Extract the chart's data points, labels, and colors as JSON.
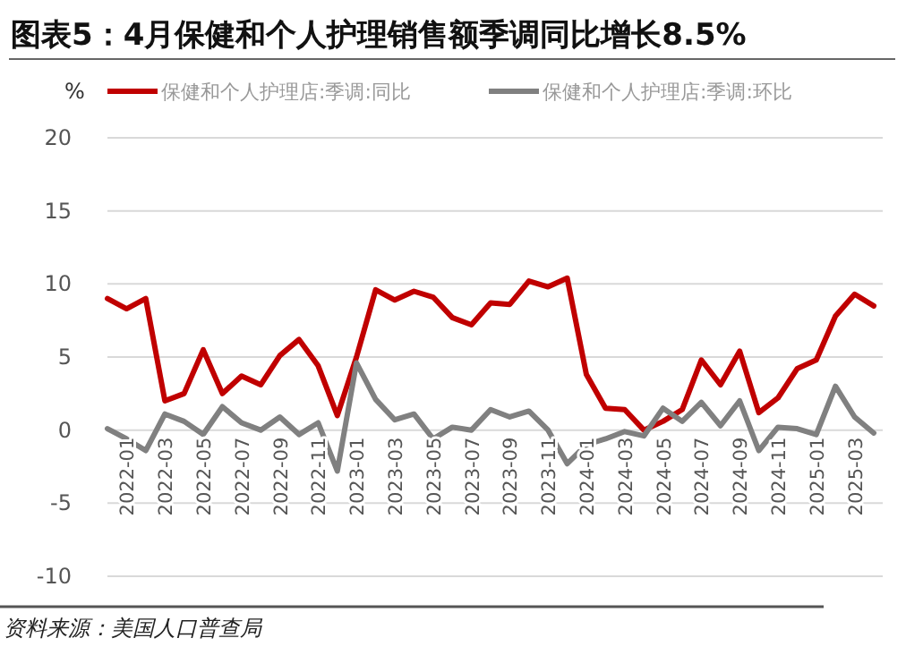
{
  "chart_data": {
    "type": "line",
    "title": "图表5：4月保健和个人护理销售额季调同比增长8.5%",
    "ylabel": "%",
    "categories": [
      null,
      "2022-01",
      null,
      "2022-03",
      null,
      "2022-05",
      null,
      "2022-07",
      null,
      "2022-09",
      null,
      "2022-11",
      null,
      "2023-01",
      null,
      "2023-03",
      null,
      "2023-05",
      null,
      "2023-07",
      null,
      "2023-09",
      null,
      "2023-11",
      null,
      "2024-01",
      null,
      "2024-03",
      null,
      "2024-05",
      null,
      "2024-07",
      null,
      "2024-09",
      null,
      "2024-11",
      null,
      "2025-01",
      null,
      "2025-03",
      null
    ],
    "series": [
      {
        "name": "保健和个人护理店:季调:同比",
        "color": "#c00000",
        "values": [
          9.0,
          8.3,
          9.0,
          2.0,
          2.5,
          5.5,
          2.5,
          3.7,
          3.1,
          5.1,
          6.2,
          4.4,
          1.0,
          5.0,
          9.6,
          8.9,
          9.5,
          9.1,
          7.7,
          7.2,
          8.7,
          8.6,
          10.2,
          9.8,
          10.4,
          3.8,
          1.5,
          1.4,
          0.0,
          0.6,
          1.4,
          4.8,
          3.1,
          5.4,
          1.2,
          2.2,
          4.2,
          4.8,
          7.8,
          9.3,
          8.5
        ]
      },
      {
        "name": "保健和个人护理店:季调:环比",
        "color": "#808080",
        "values": [
          0.1,
          -0.6,
          -1.4,
          1.1,
          0.6,
          -0.3,
          1.6,
          0.5,
          0.0,
          0.9,
          -0.3,
          0.5,
          -2.8,
          4.6,
          2.1,
          0.7,
          1.1,
          -0.6,
          0.2,
          0.0,
          1.4,
          0.9,
          1.3,
          0.0,
          -2.3,
          -1.0,
          -0.6,
          -0.1,
          -0.4,
          1.5,
          0.6,
          1.9,
          0.3,
          2.0,
          -1.4,
          0.2,
          0.1,
          -0.3,
          3.0,
          0.9,
          -0.2
        ]
      }
    ],
    "ylim": [
      -10,
      20
    ],
    "yticks": [
      -10,
      -5,
      0,
      5,
      10,
      15,
      20
    ],
    "grid": "y",
    "legend": "top",
    "line_style": "solid",
    "marker": "none",
    "annotations": [
      "资料来源：美国人口普查局"
    ]
  }
}
